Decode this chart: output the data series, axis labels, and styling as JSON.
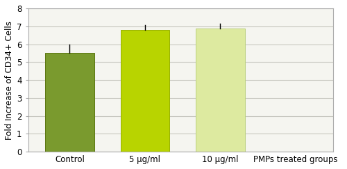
{
  "categories": [
    "Control",
    "5 µg/ml",
    "10 µg/ml"
  ],
  "values": [
    5.52,
    6.8,
    6.87
  ],
  "errors": [
    0.45,
    0.25,
    0.28
  ],
  "bar_colors": [
    "#7a9a2e",
    "#b8d400",
    "#ddeaa0"
  ],
  "bar_edgecolors": [
    "#5a7510",
    "#96b000",
    "#bbd080"
  ],
  "ylabel": "Fold Increase of CD34+ Cells",
  "xlabel_extra": "PMPs treated groups",
  "ylim": [
    0,
    8
  ],
  "yticks": [
    0,
    1,
    2,
    3,
    4,
    5,
    6,
    7,
    8
  ],
  "background_color": "#ffffff",
  "plot_bg_color": "#f5f5f0",
  "grid_color": "#c8c8c0",
  "bar_width": 0.65,
  "ylabel_fontsize": 8.5,
  "xlabel_fontsize": 8.5,
  "tick_fontsize": 8.5,
  "border_color": "#aaaaaa"
}
